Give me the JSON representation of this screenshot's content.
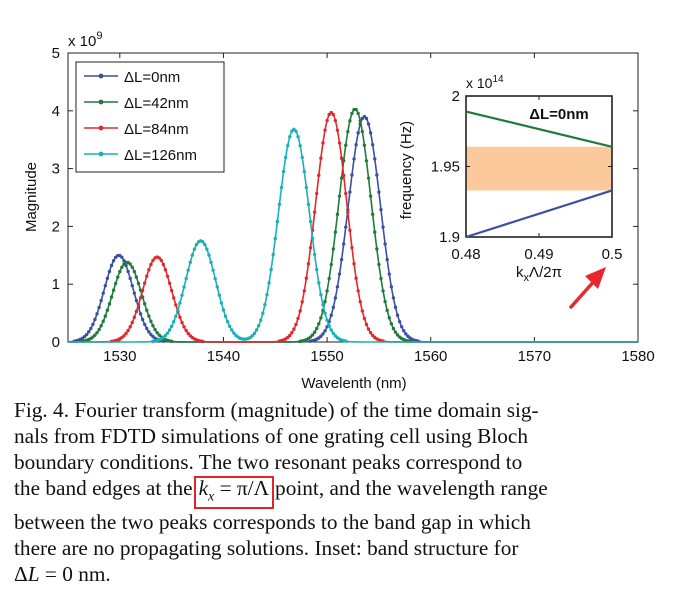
{
  "figure": {
    "main": {
      "exponent_label": "x 10",
      "exponent_power": "9",
      "ylabel": "Magnitude",
      "xlabel": "Wavelenth (nm)",
      "xticks": [
        "1530",
        "1540",
        "1550",
        "1560",
        "1570",
        "1580"
      ],
      "yticks": [
        "0",
        "1",
        "2",
        "3",
        "4",
        "5"
      ],
      "legend": [
        "ΔL=0nm",
        "ΔL=42nm",
        "ΔL=84nm",
        "ΔL=126nm"
      ]
    },
    "inset": {
      "exponent_label": "x 10",
      "exponent_power": "14",
      "ylabel": "frequency (Hz)",
      "xlabel": "kxΛ/2π",
      "xlabel_main": "k",
      "xlabel_sub": "x",
      "xlabel_rest": "Λ/2π",
      "xticks": [
        "0.48",
        "0.49",
        "0.5"
      ],
      "yticks": [
        "1.9",
        "1.95",
        "2"
      ],
      "title": "ΔL=0nm"
    }
  },
  "chart_data": [
    {
      "type": "line",
      "title": "",
      "xlabel": "Wavelenth (nm)",
      "ylabel": "Magnitude",
      "y_scale_note": "x 10^9",
      "xlim": [
        1525,
        1580
      ],
      "ylim": [
        0,
        5
      ],
      "x_ticks": [
        1530,
        1540,
        1550,
        1560,
        1570,
        1580
      ],
      "y_ticks": [
        0,
        1,
        2,
        3,
        4,
        5
      ],
      "legend_position": "top-left",
      "series": [
        {
          "name": "ΔL=0nm",
          "color": "#3b4fa3",
          "peaks": [
            {
              "x": 1529.9,
              "y": 1.5,
              "width": 1.4
            },
            {
              "x": 1553.6,
              "y": 3.9,
              "width": 1.55
            }
          ]
        },
        {
          "name": "ΔL=42nm",
          "color": "#1f7a3c",
          "peaks": [
            {
              "x": 1530.7,
              "y": 1.38,
              "width": 1.4
            },
            {
              "x": 1552.7,
              "y": 4.03,
              "width": 1.55
            }
          ]
        },
        {
          "name": "ΔL=84nm",
          "color": "#e0282d",
          "peaks": [
            {
              "x": 1533.6,
              "y": 1.47,
              "width": 1.4
            },
            {
              "x": 1550.4,
              "y": 3.97,
              "width": 1.5
            }
          ]
        },
        {
          "name": "ΔL=126nm",
          "color": "#1ab0b6",
          "peaks": [
            {
              "x": 1537.8,
              "y": 1.75,
              "width": 1.45
            },
            {
              "x": 1546.8,
              "y": 3.68,
              "width": 1.5
            }
          ]
        }
      ]
    },
    {
      "type": "line",
      "title": "ΔL=0nm",
      "xlabel": "kxΛ/2π",
      "ylabel": "frequency (Hz)",
      "y_scale_note": "x 10^14",
      "xlim": [
        0.48,
        0.5
      ],
      "ylim": [
        1.9,
        2
      ],
      "x_ticks": [
        0.48,
        0.49,
        0.5
      ],
      "y_ticks": [
        1.9,
        1.95,
        2
      ],
      "band_gap": [
        1.933,
        1.964
      ],
      "band_gap_color": "#fbc99c",
      "series": [
        {
          "name": "upper band",
          "color": "#1f7a3c",
          "x": [
            0.48,
            0.5
          ],
          "y": [
            1.989,
            1.964
          ]
        },
        {
          "name": "lower band",
          "color": "#3b4fa3",
          "x": [
            0.48,
            0.5
          ],
          "y": [
            1.9,
            1.933
          ]
        }
      ]
    }
  ],
  "caption": {
    "line1": "Fig. 4.   Fourier transform (magnitude) of the time domain sig-",
    "line2": "nals from FDTD simulations of one grating cell using Bloch",
    "line3": "boundary conditions. The two resonant peaks correspond to",
    "line4_before": "the band edges at the",
    "line4_kx_k": "k",
    "line4_kx_sub": "x",
    "line4_kx_rest": " = π/Λ",
    "line4_after": "point, and the wavelength range",
    "line5": "between the two peaks corresponds to the band gap in which",
    "line6": "there are no propagating solutions. Inset: band structure for",
    "line7_delta": "Δ",
    "line7_L": "L",
    "line7_rest": " = 0 nm."
  },
  "colors": {
    "annotation_red": "#e0252a",
    "arrow_red": "#e8262b"
  }
}
